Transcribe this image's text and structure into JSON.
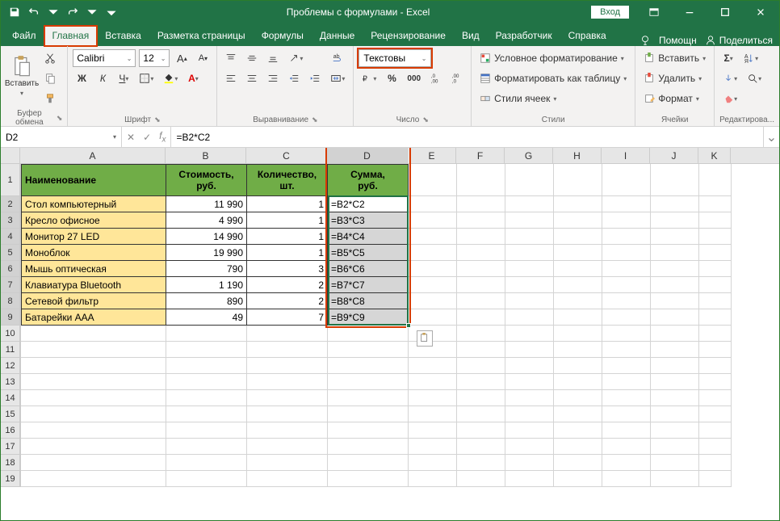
{
  "titlebar": {
    "title": "Проблемы с формулами - Excel",
    "signin": "Вход"
  },
  "tabs": {
    "items": [
      "Файл",
      "Главная",
      "Вставка",
      "Разметка страницы",
      "Формулы",
      "Данные",
      "Рецензирование",
      "Вид",
      "Разработчик",
      "Справка"
    ],
    "active_index": 1,
    "help": "Помощн",
    "share": "Поделиться"
  },
  "ribbon": {
    "clipboard": {
      "paste": "Вставить",
      "label": "Буфер обмена"
    },
    "font": {
      "name": "Calibri",
      "size": "12",
      "label": "Шрифт"
    },
    "alignment": {
      "label": "Выравнивание"
    },
    "number": {
      "format": "Текстовы",
      "label": "Число"
    },
    "styles": {
      "cond": "Условное форматирование",
      "table": "Форматировать как таблицу",
      "cell": "Стили ячеек",
      "label": "Стили"
    },
    "cells": {
      "insert": "Вставить",
      "delete": "Удалить",
      "format": "Формат",
      "label": "Ячейки"
    },
    "editing": {
      "label": "Редактирова..."
    }
  },
  "formula_bar": {
    "namebox": "D2",
    "formula": "=B2*C2"
  },
  "grid": {
    "col_widths": {
      "A": 180,
      "B": 100,
      "C": 100,
      "D": 100,
      "E": 60,
      "F": 60,
      "G": 60,
      "H": 60,
      "I": 60,
      "J": 60,
      "K": 40
    },
    "columns": [
      "A",
      "B",
      "C",
      "D",
      "E",
      "F",
      "G",
      "H",
      "I",
      "J",
      "K"
    ],
    "headers": [
      "Наименование",
      "Стоимость, руб.",
      "Количество, шт.",
      "Сумма, руб."
    ],
    "rows": [
      {
        "name": "Стол компьютерный",
        "cost": "11 990",
        "qty": "1",
        "formula": "=B2*C2"
      },
      {
        "name": "Кресло офисное",
        "cost": "4 990",
        "qty": "1",
        "formula": "=B3*C3"
      },
      {
        "name": "Монитор 27 LED",
        "cost": "14 990",
        "qty": "1",
        "formula": "=B4*C4"
      },
      {
        "name": "Моноблок",
        "cost": "19 990",
        "qty": "1",
        "formula": "=B5*C5"
      },
      {
        "name": "Мышь оптическая",
        "cost": "790",
        "qty": "3",
        "formula": "=B6*C6"
      },
      {
        "name": "Клавиатура Bluetooth",
        "cost": "1 190",
        "qty": "2",
        "formula": "=B7*C7"
      },
      {
        "name": "Сетевой фильтр",
        "cost": "890",
        "qty": "2",
        "formula": "=B8*C8"
      },
      {
        "name": "Батарейки ААА",
        "cost": "49",
        "qty": "7",
        "formula": "=B9*C9"
      }
    ],
    "empty_rows": [
      10,
      11,
      12,
      13,
      14,
      15,
      16,
      17,
      18,
      19
    ],
    "selection": {
      "col": "D",
      "rows": [
        2,
        9
      ]
    },
    "colors": {
      "header_bg": "#70ad47",
      "name_bg": "#ffe699",
      "formula_bg": "#d6d6d6",
      "excel_green": "#217346",
      "highlight_red": "#d83b01"
    }
  }
}
